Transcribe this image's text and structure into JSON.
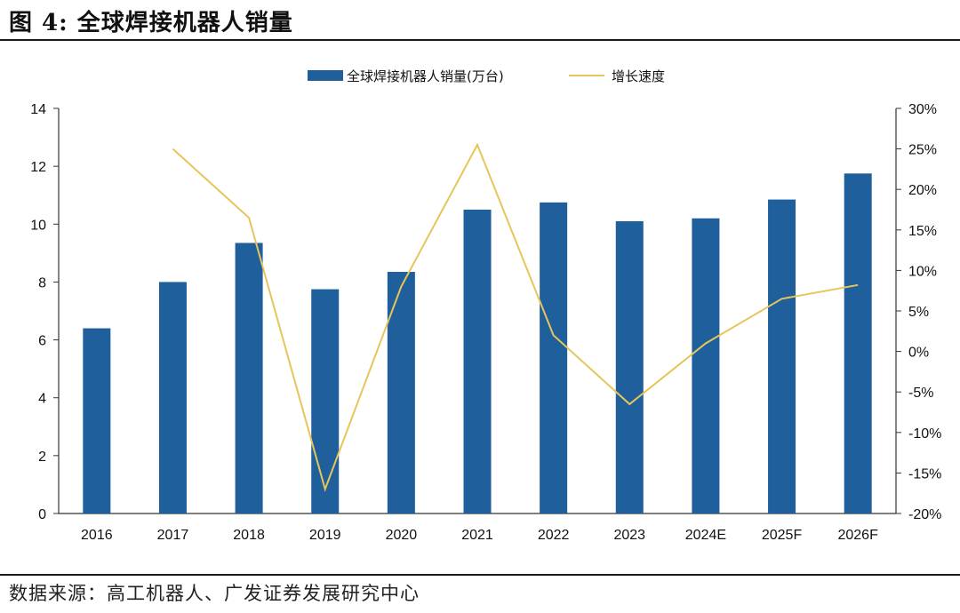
{
  "header": {
    "figure_title": "图 4: 全球焊接机器人销量"
  },
  "footer": {
    "source": "数据来源：高工机器人、广发证券发展研究中心"
  },
  "chart_data": {
    "type": "bar",
    "title": "全球焊接机器人销量",
    "categories": [
      "2016",
      "2017",
      "2018",
      "2019",
      "2020",
      "2021",
      "2022",
      "2023",
      "2024E",
      "2025F",
      "2026F"
    ],
    "series": [
      {
        "name": "全球焊接机器人销量(万台)",
        "type": "bar",
        "axis": "left",
        "color": "#1f5f9c",
        "values": [
          6.4,
          8.0,
          9.35,
          7.75,
          8.35,
          10.5,
          10.75,
          10.1,
          10.2,
          10.85,
          11.75
        ]
      },
      {
        "name": "增长速度",
        "type": "line",
        "axis": "right",
        "color": "#e6c55a",
        "values": [
          null,
          25.0,
          16.5,
          -17.0,
          8.0,
          25.5,
          2.0,
          -6.5,
          1.0,
          6.5,
          8.2
        ]
      }
    ],
    "y_left": {
      "min": 0,
      "max": 14,
      "step": 2,
      "ticks": [
        "0",
        "2",
        "4",
        "6",
        "8",
        "10",
        "12",
        "14"
      ]
    },
    "y_right": {
      "min": -20,
      "max": 30,
      "step": 5,
      "ticks": [
        "-20%",
        "-15%",
        "-10%",
        "-5%",
        "0%",
        "5%",
        "10%",
        "15%",
        "20%",
        "25%",
        "30%"
      ]
    },
    "legend": {
      "position": "top-center",
      "bar_label": "全球焊接机器人销量(万台)",
      "line_label": "增长速度"
    },
    "grid": false
  }
}
